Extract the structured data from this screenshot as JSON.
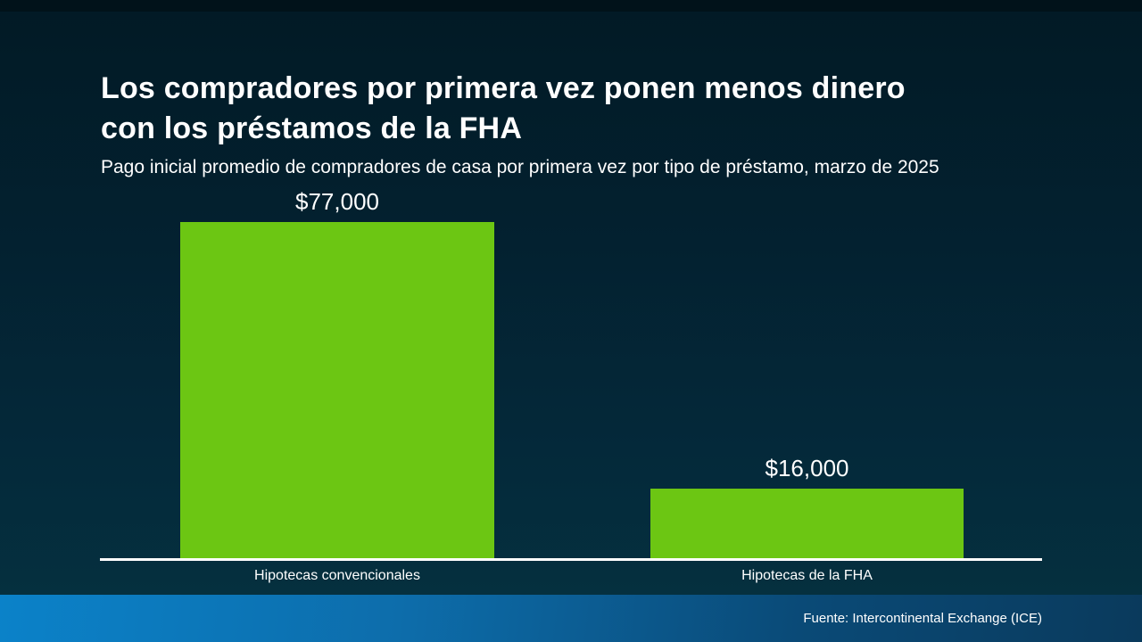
{
  "header": {
    "title": "Los compradores por primera vez ponen menos dinero con los préstamos de la FHA",
    "title_lines": [
      "Los compradores por primera vez ponen menos dinero",
      "con los préstamos de la FHA"
    ],
    "subtitle": "Pago inicial promedio de compradores de casa por primera vez por tipo de préstamo, marzo de 2025"
  },
  "chart_data": {
    "type": "bar",
    "title": "Los compradores por primera vez ponen menos dinero con los préstamos de la FHA",
    "subtitle": "Pago inicial promedio de compradores de casa por primera vez por tipo de préstamo, marzo de 2025",
    "categories": [
      "Hipotecas convencionales",
      "Hipotecas de la FHA"
    ],
    "values": [
      77000,
      16000
    ],
    "value_labels": [
      "$77,000",
      "$16,000"
    ],
    "xlabel": "",
    "ylabel": "",
    "ylim": [
      0,
      77000
    ],
    "grid": false,
    "legend": false,
    "bar_color": "#6cc613",
    "axis_line_color": "#ffffff"
  },
  "footer": {
    "source": "Fuente: Intercontinental Exchange (ICE)"
  },
  "colors": {
    "background_top": "#021a25",
    "background_bottom": "#05313f",
    "bar_green": "#6cc613",
    "footer_gradient_left": "#0b82c9",
    "footer_gradient_right": "#0a3a5c",
    "text": "#ffffff"
  }
}
